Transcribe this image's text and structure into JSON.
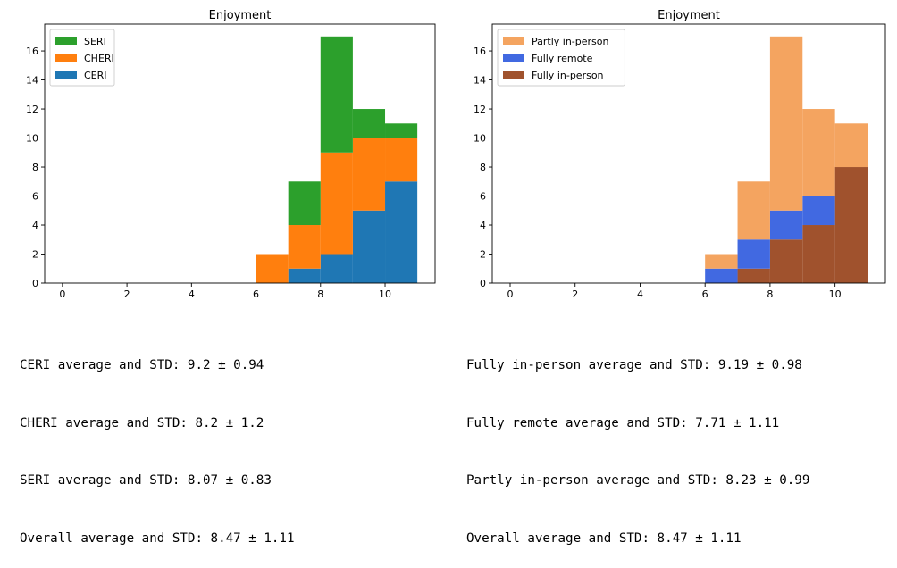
{
  "chart_data": [
    {
      "type": "histogram",
      "stacked": true,
      "title": "Enjoyment",
      "xlabel": "",
      "ylabel": "",
      "xlim": [
        -0.55,
        11.55
      ],
      "ylim": [
        0,
        17.85
      ],
      "xticks": [
        "0",
        "2",
        "4",
        "6",
        "8",
        "10"
      ],
      "yticks": [
        "0",
        "2",
        "4",
        "6",
        "8",
        "10",
        "12",
        "14",
        "16"
      ],
      "bins": [
        6,
        7,
        8,
        9,
        10,
        11
      ],
      "legend": {
        "placement": "top-left",
        "entries": [
          "SERI",
          "CHERI",
          "CERI"
        ]
      },
      "series": [
        {
          "name": "CERI",
          "color": "#1f77b4",
          "values": [
            0,
            1,
            2,
            5,
            7
          ]
        },
        {
          "name": "CHERI",
          "color": "#ff7f0e",
          "values": [
            2,
            3,
            7,
            5,
            3
          ]
        },
        {
          "name": "SERI",
          "color": "#2ca02c",
          "values": [
            0,
            3,
            8,
            2,
            1
          ]
        }
      ]
    },
    {
      "type": "histogram",
      "stacked": true,
      "title": "Enjoyment",
      "xlabel": "",
      "ylabel": "",
      "xlim": [
        -0.55,
        11.55
      ],
      "ylim": [
        0,
        17.85
      ],
      "xticks": [
        "0",
        "2",
        "4",
        "6",
        "8",
        "10"
      ],
      "yticks": [
        "0",
        "2",
        "4",
        "6",
        "8",
        "10",
        "12",
        "14",
        "16"
      ],
      "bins": [
        6,
        7,
        8,
        9,
        10,
        11
      ],
      "legend": {
        "placement": "top-left",
        "entries": [
          "Partly in-person",
          "Fully remote",
          "Fully in-person"
        ]
      },
      "series": [
        {
          "name": "Fully in-person",
          "color": "#a0522d",
          "values": [
            0,
            1,
            3,
            4,
            8
          ]
        },
        {
          "name": "Fully remote",
          "color": "#4169e1",
          "values": [
            1,
            2,
            2,
            2,
            0
          ]
        },
        {
          "name": "Partly in-person",
          "color": "#f4a460",
          "values": [
            1,
            4,
            12,
            6,
            3
          ]
        }
      ]
    }
  ],
  "stats": {
    "left": [
      "CERI average and STD: 9.2 ± 0.94",
      "CHERI average and STD: 8.2 ± 1.2",
      "SERI average and STD: 8.07 ± 0.83",
      "Overall average and STD: 8.47 ± 1.11"
    ],
    "right": [
      "Fully in-person average and STD: 9.19 ± 0.98",
      "Fully remote average and STD: 7.71 ± 1.11",
      "Partly in-person average and STD: 8.23 ± 0.99",
      "Overall average and STD: 8.47 ± 1.11"
    ]
  }
}
